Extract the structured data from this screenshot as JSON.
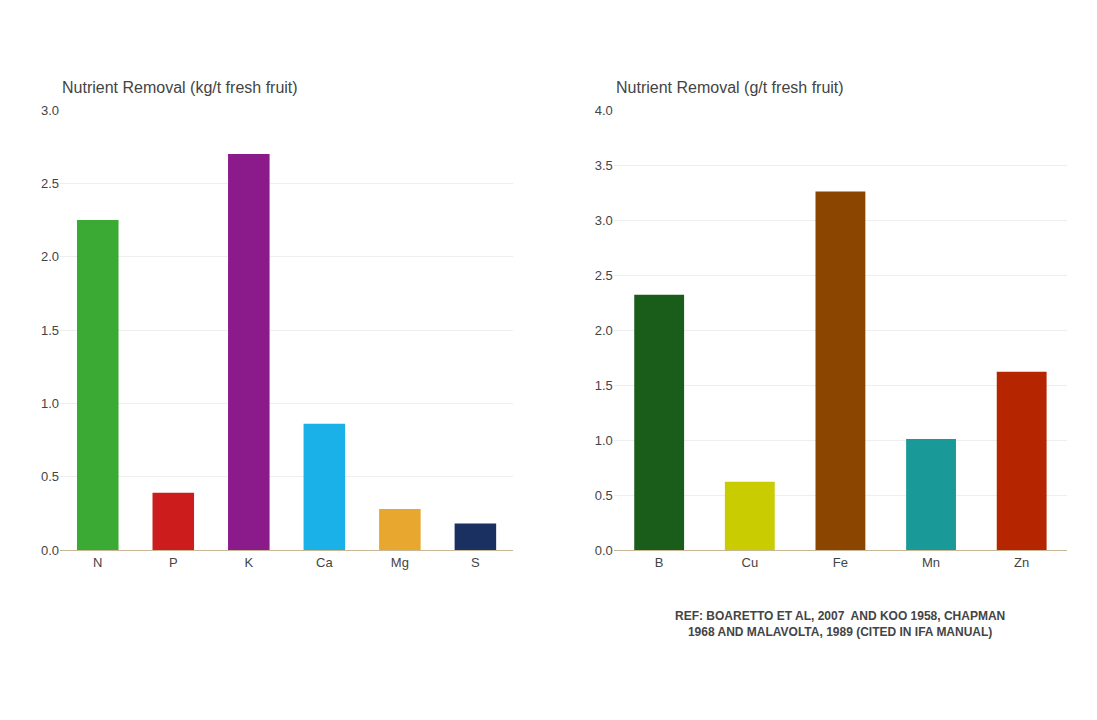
{
  "chart_data": [
    {
      "type": "bar",
      "title": "Nutrient Removal (kg/t fresh fruit)",
      "categories": [
        "N",
        "P",
        "K",
        "Ca",
        "Mg",
        "S"
      ],
      "values": [
        2.25,
        0.39,
        2.7,
        0.86,
        0.28,
        0.18
      ],
      "colors": [
        "#3aaa35",
        "#cc1c1c",
        "#8b1a8b",
        "#1ab0e8",
        "#e8a830",
        "#1a3060"
      ],
      "ylim": [
        0,
        3.0
      ],
      "yticks": [
        {
          "value": 0.0,
          "label": "0.0"
        },
        0.5,
        {
          "value": 1.0,
          "label": "1.0"
        },
        1.5,
        {
          "value": 2.0,
          "label": "2.0"
        },
        2.5,
        {
          "value": 3.0,
          "label": "3.0"
        }
      ],
      "grid": true
    },
    {
      "type": "bar",
      "title": "Nutrient Removal (g/t fresh fruit)",
      "categories": [
        "B",
        "Cu",
        "Fe",
        "Mn",
        "Zn"
      ],
      "values": [
        2.32,
        0.62,
        3.26,
        1.01,
        1.62
      ],
      "colors": [
        "#1a5c1a",
        "#c8cc00",
        "#8b4500",
        "#1a9999",
        "#b52500"
      ],
      "ylim": [
        0,
        4.0
      ],
      "yticks": [
        {
          "value": 0.0,
          "label": "0.0"
        },
        0.5,
        {
          "value": 1.0,
          "label": "1.0"
        },
        1.5,
        {
          "value": 2.0,
          "label": "2.0"
        },
        2.5,
        {
          "value": 3.0,
          "label": "3.0"
        },
        3.5,
        {
          "value": 4.0,
          "label": "4.0"
        }
      ],
      "grid": true,
      "annotations": [
        "REF: BOARETTO ET AL, 2007  AND KOO 1958, CHAPMAN\n1968 AND MALAVOLTA, 1989 (CITED IN IFA MANUAL)"
      ]
    }
  ]
}
